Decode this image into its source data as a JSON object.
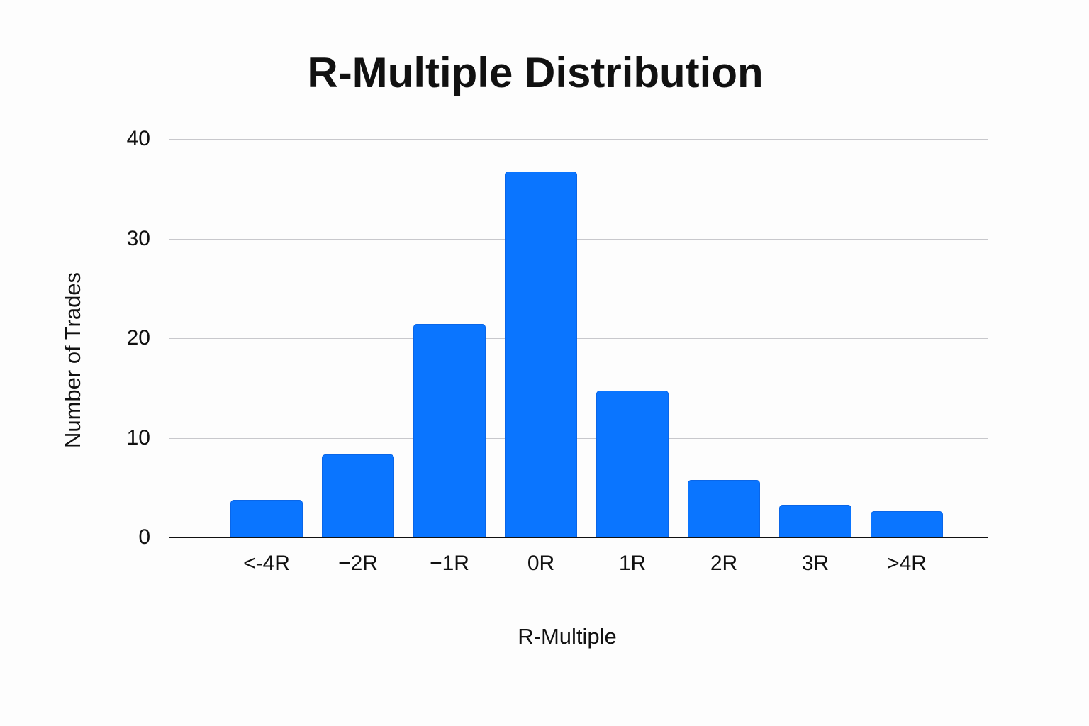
{
  "chart_data": {
    "type": "bar",
    "title": "R-Multiple Distribution",
    "xlabel": "R-Multiple",
    "ylabel": "Number of Trades",
    "categories": [
      "<-4R",
      "−2R",
      "−1R",
      "0R",
      "1R",
      "2R",
      "3R",
      ">4R"
    ],
    "values": [
      3.8,
      8.3,
      21.4,
      36.7,
      14.7,
      5.8,
      3.3,
      2.6
    ],
    "ylim": [
      0,
      40
    ],
    "yticks": [
      0,
      10,
      20,
      30,
      40
    ],
    "grid": true,
    "legend": null,
    "bar_color": "#0a75ff"
  }
}
